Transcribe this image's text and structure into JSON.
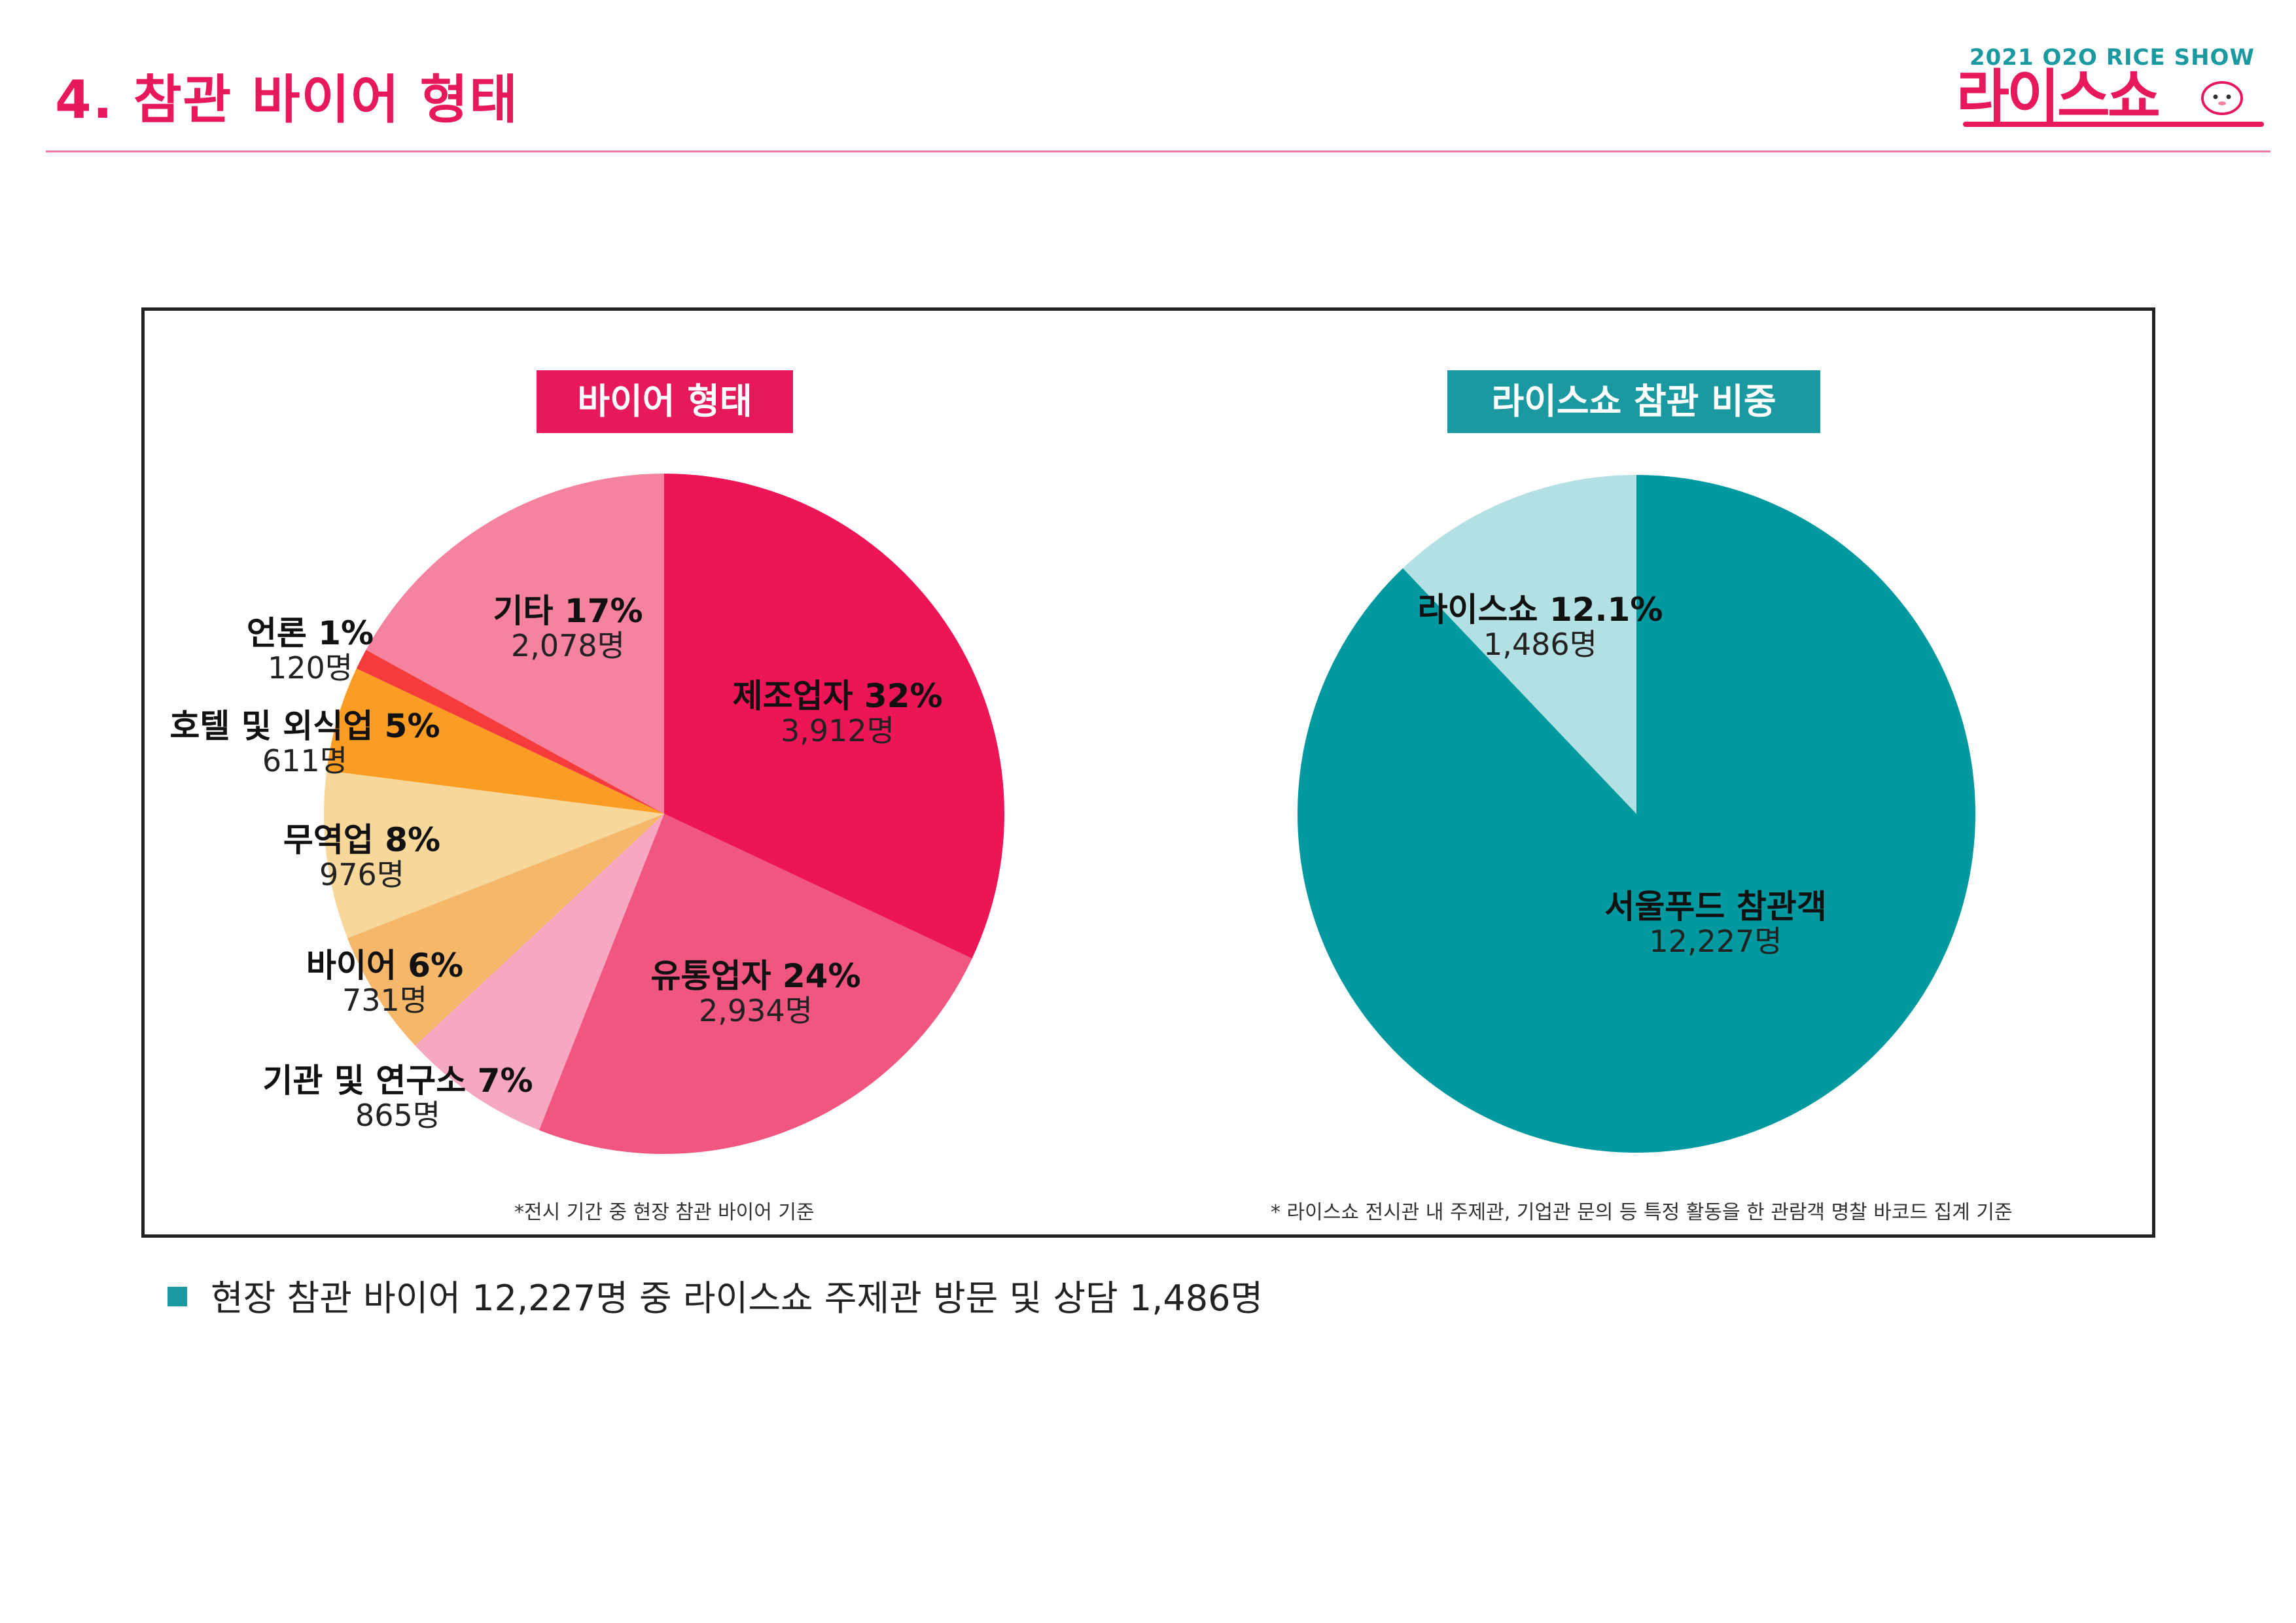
{
  "header": {
    "title": "4. 참관 바이어 형태",
    "logo_top": "2021 O2O RICE SHOW",
    "logo_main": "라이스쇼"
  },
  "chart_data": [
    {
      "type": "pie",
      "title": "바이어 형태",
      "title_color": "#e8195a",
      "slices": [
        {
          "name": "제조업자",
          "percent_label": "32%",
          "count_label": "3,912명",
          "value": 3912,
          "color": "#ed1556"
        },
        {
          "name": "유통업자",
          "percent_label": "24%",
          "count_label": "2,934명",
          "value": 2934,
          "color": "#f05680"
        },
        {
          "name": "기관 및 연구소",
          "percent_label": "7%",
          "count_label": "865명",
          "value": 865,
          "color": "#f5a8bf"
        },
        {
          "name": "바이어",
          "percent_label": "6%",
          "count_label": "731명",
          "value": 731,
          "color": "#f5b86a"
        },
        {
          "name": "무역업",
          "percent_label": "8%",
          "count_label": "976명",
          "value": 976,
          "color": "#f8d79b"
        },
        {
          "name": "호텔 및 외식업",
          "percent_label": "5%",
          "count_label": "611명",
          "value": 611,
          "color": "#fb9d22"
        },
        {
          "name": "언론",
          "percent_label": "1%",
          "count_label": "120명",
          "value": 120,
          "color": "#f53b3b"
        },
        {
          "name": "기타",
          "percent_label": "17%",
          "count_label": "2,078명",
          "value": 2078,
          "color": "#f5829f"
        }
      ],
      "footnote": "*전시 기간 중 현장 참관 바이어 기준"
    },
    {
      "type": "pie",
      "title": "라이스쇼 참관 비중",
      "title_color": "#1a9aa0",
      "slices": [
        {
          "name": "서울푸드 참관객",
          "percent_label": "",
          "count_label": "12,227명",
          "value": 87.9,
          "color": "#0199a0"
        },
        {
          "name": "라이스쇼",
          "percent_label": "12.1%",
          "count_label": "1,486명",
          "value": 12.1,
          "color": "#b3e0e2"
        }
      ],
      "footnote": "* 라이스쇼 전시관 내 주제관, 기업관 문의 등 특정 활동을 한 관람객 명찰 바코드 집계 기준"
    }
  ],
  "summary": {
    "text": "현장 참관 바이어 12,227명 중 라이스쇼 주제관 방문 및 상담 1,486명",
    "bullet_color": "#1a9aa0"
  }
}
